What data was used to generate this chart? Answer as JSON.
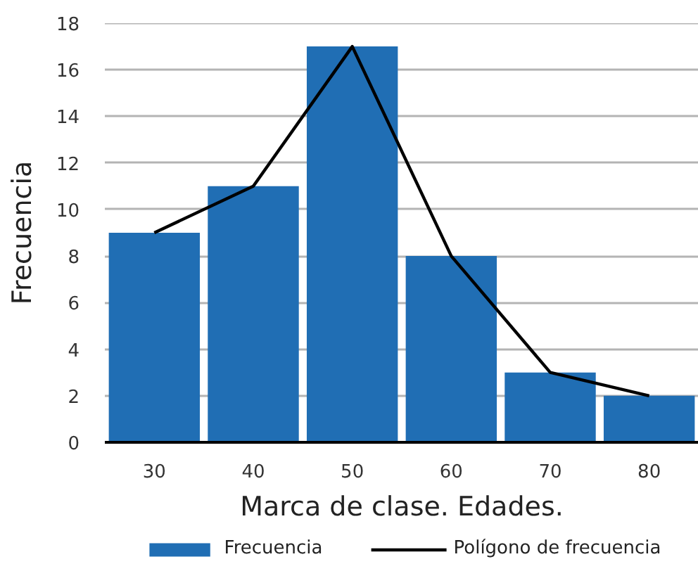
{
  "chart_data": {
    "type": "bar",
    "xlabel": "Marca de clase. Edades.",
    "ylabel": "Frecuencia",
    "categories": [
      "30",
      "40",
      "50",
      "60",
      "70",
      "80"
    ],
    "series": [
      {
        "name": "Frecuencia",
        "type": "bar",
        "color": "#206eb4",
        "values": [
          9,
          11,
          17,
          8,
          3,
          2
        ]
      },
      {
        "name": "Polígono de frecuencia",
        "type": "line",
        "color": "#000000",
        "values": [
          9,
          11,
          17,
          8,
          3,
          2
        ]
      }
    ],
    "ylim": [
      0,
      18
    ],
    "yticks": [
      0,
      2,
      4,
      6,
      8,
      10,
      12,
      14,
      16,
      18
    ],
    "grid": "y",
    "legend": "bottom"
  }
}
